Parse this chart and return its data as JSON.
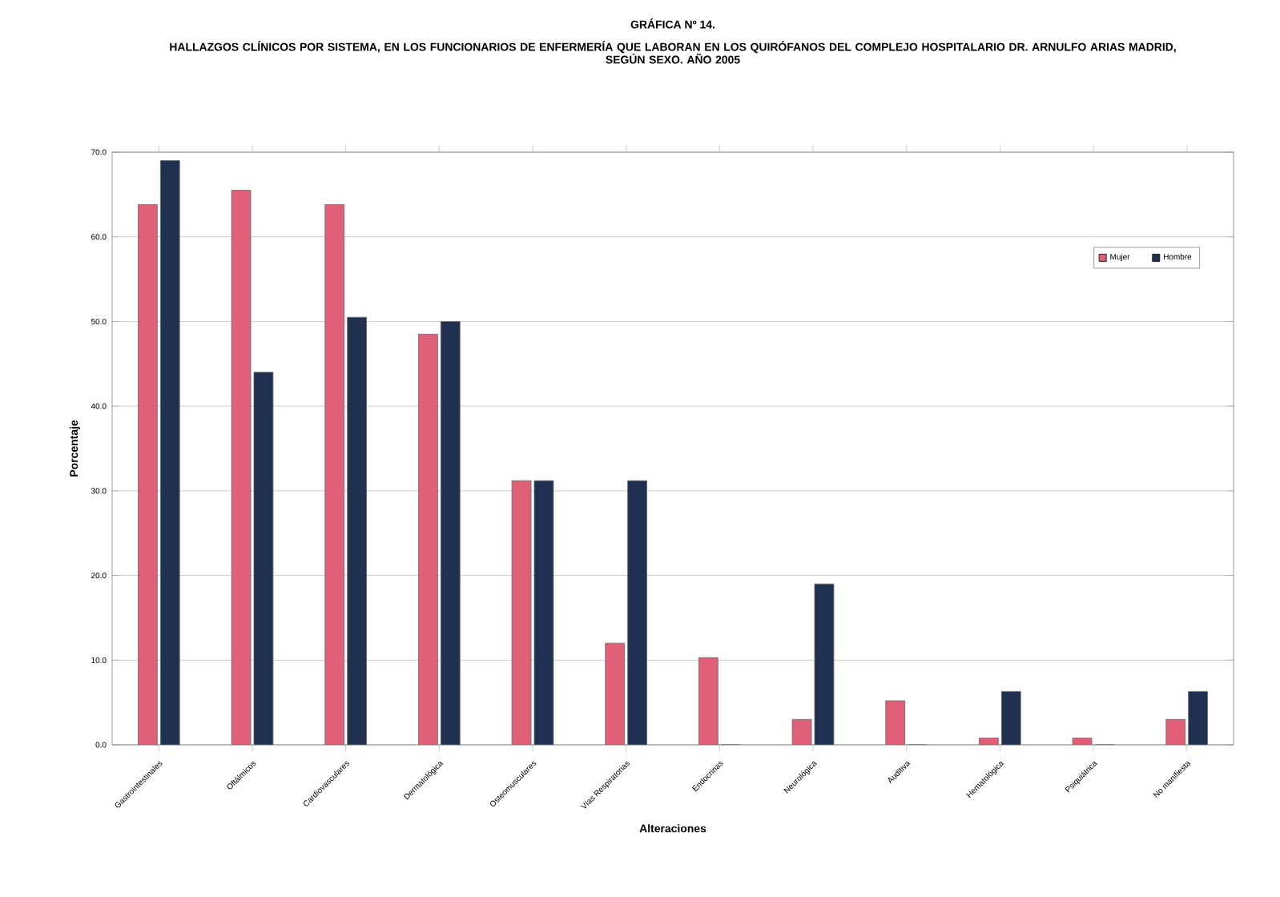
{
  "chart_data": {
    "type": "bar",
    "title": "GRÁFICA Nº 14.",
    "subtitle": "HALLAZGOS CLÍNICOS POR SISTEMA, EN LOS FUNCIONARIOS DE ENFERMERÍA QUE LABORAN EN LOS QUIRÓFANOS DEL COMPLEJO HOSPITALARIO DR. ARNULFO ARIAS MADRID, SEGÚN SEXO. AÑO 2005",
    "xlabel": "Alteraciones",
    "ylabel": "Porcentaje",
    "categories": [
      "Gastrointestinales",
      "Oftálmicos",
      "Cardiovasculares",
      "Dermatológica",
      "Osteomusculares",
      "Vías Respiratorias",
      "Endocrinas",
      "Neurológica",
      "Auditiva",
      "Hematológica",
      "Psiquiátrica",
      "No manifiesta"
    ],
    "series": [
      {
        "name": "Mujer",
        "color": "#e06078",
        "values": [
          63.8,
          65.5,
          63.8,
          48.5,
          31.2,
          12.0,
          10.3,
          3.0,
          5.2,
          0.8,
          0.8,
          3.0
        ]
      },
      {
        "name": "Hombre",
        "color": "#1f3050",
        "values": [
          69.0,
          44.0,
          50.5,
          50.0,
          31.2,
          31.2,
          0,
          19.0,
          0,
          6.3,
          0,
          6.3
        ]
      }
    ],
    "ylim": [
      0,
      70
    ],
    "yticks": [
      {
        "value": 0,
        "label": "0.0"
      },
      {
        "value": 10,
        "label": "10.0"
      },
      {
        "value": 20,
        "label": "20.0"
      },
      {
        "value": 30,
        "label": "30.0"
      },
      {
        "value": 40,
        "label": "40.0"
      },
      {
        "value": 50,
        "label": "50.0"
      },
      {
        "value": 60,
        "label": "60.0"
      },
      {
        "value": 70,
        "label": "70.0"
      }
    ],
    "grid": "y",
    "legend": "top right"
  }
}
